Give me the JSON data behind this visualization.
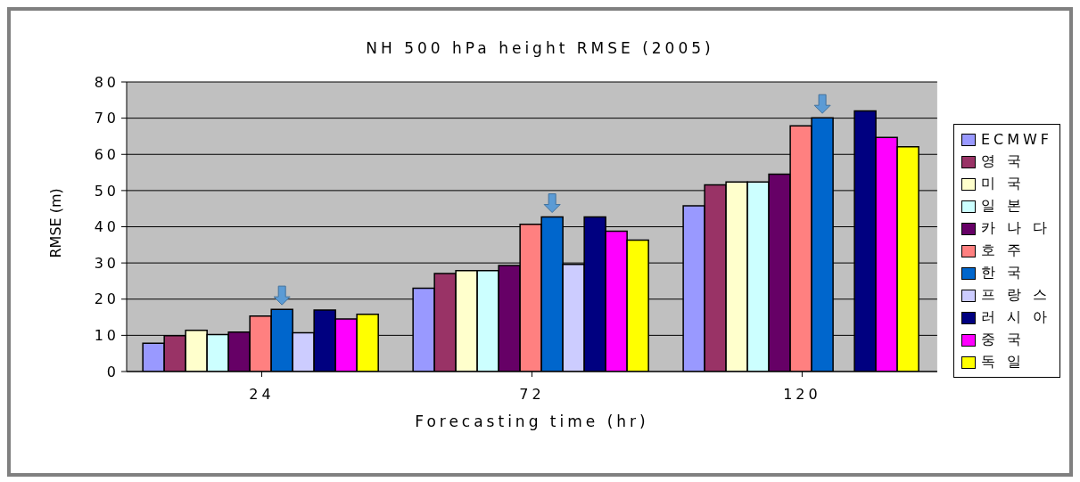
{
  "chart_data": {
    "type": "bar",
    "title": "NH 500 hPa height RMSE (2005)",
    "xlabel": "Forecasting time (hr)",
    "ylabel": "RMSE (m)",
    "categories": [
      "24",
      "72",
      "120"
    ],
    "ylim": [
      0,
      80
    ],
    "yticks": [
      0,
      10,
      20,
      30,
      40,
      50,
      60,
      70,
      80
    ],
    "grid": "y",
    "legend": "right",
    "series": [
      {
        "name": "ECMWF",
        "color": "#9999ff",
        "values": [
          7.8,
          23.0,
          45.8
        ]
      },
      {
        "name": "영 국",
        "color": "#993366",
        "values": [
          9.9,
          27.1,
          51.6
        ]
      },
      {
        "name": "미 국",
        "color": "#ffffcc",
        "values": [
          11.4,
          27.9,
          52.4
        ]
      },
      {
        "name": "일 본",
        "color": "#ccffff",
        "values": [
          10.2,
          27.9,
          52.4
        ]
      },
      {
        "name": "카 나 다",
        "color": "#660066",
        "values": [
          10.9,
          29.3,
          54.5
        ]
      },
      {
        "name": "호 주",
        "color": "#ff8080",
        "values": [
          15.3,
          40.7,
          67.9
        ]
      },
      {
        "name": "한 국",
        "color": "#0066cc",
        "values": [
          17.2,
          42.7,
          70.1
        ]
      },
      {
        "name": "프 랑 스",
        "color": "#ccccff",
        "values": [
          10.7,
          29.6,
          null
        ]
      },
      {
        "name": "러 시 아",
        "color": "#000080",
        "values": [
          17.0,
          42.7,
          72.0
        ]
      },
      {
        "name": "중 국",
        "color": "#ff00ff",
        "values": [
          14.5,
          38.8,
          64.7
        ]
      },
      {
        "name": "독 일",
        "color": "#ffff00",
        "values": [
          15.8,
          36.3,
          62.1
        ]
      }
    ]
  }
}
